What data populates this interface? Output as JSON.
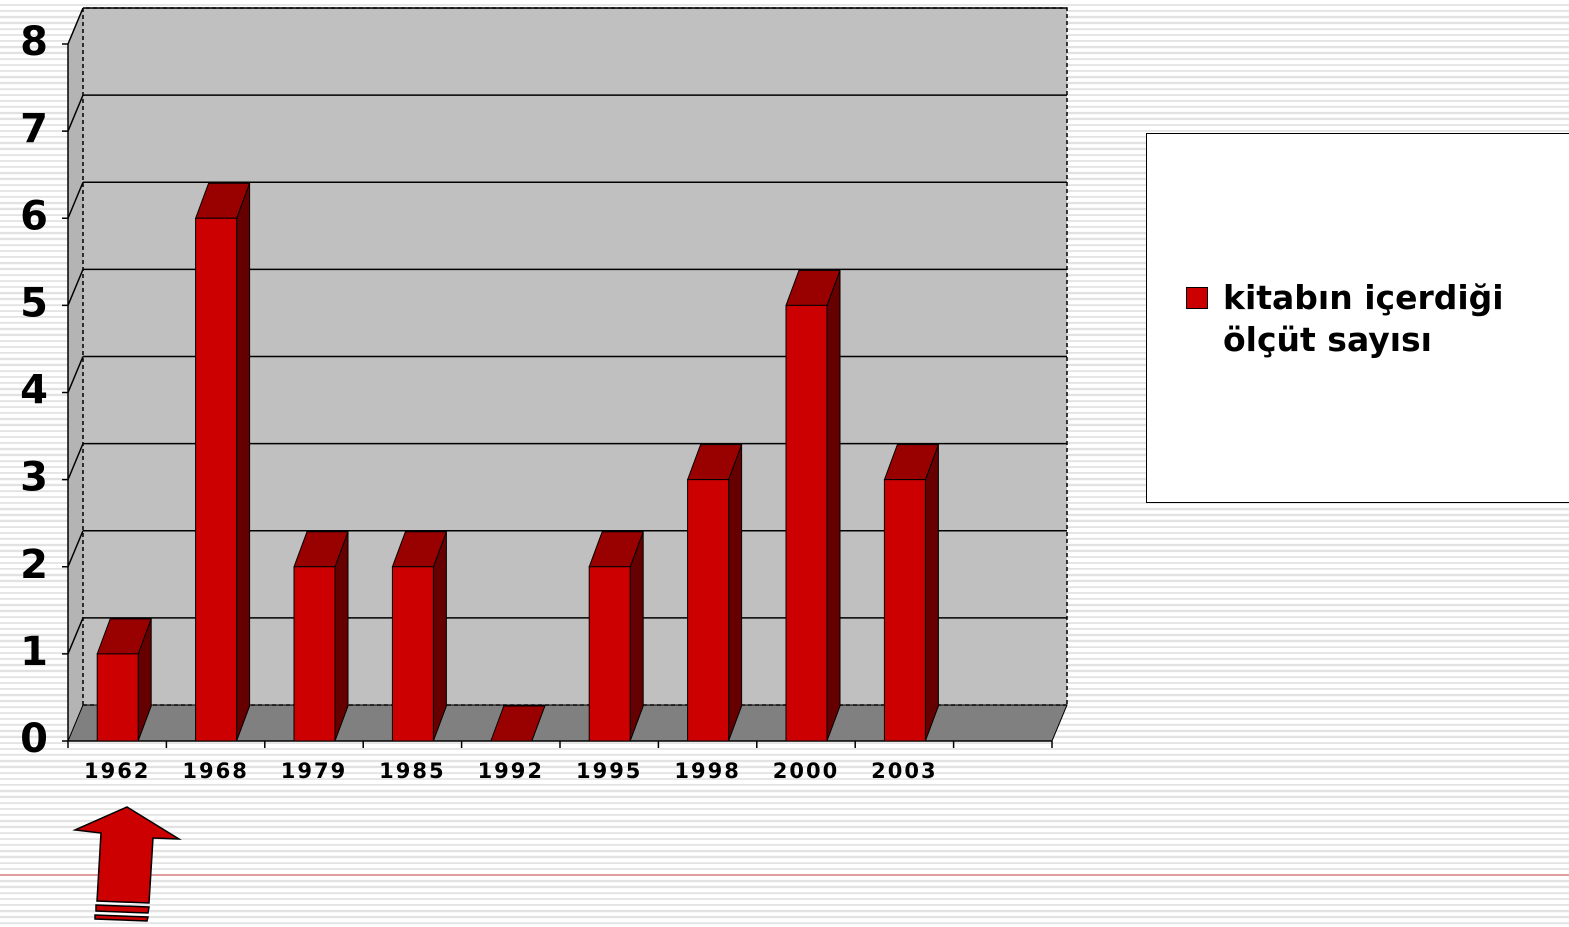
{
  "chart_data": {
    "type": "bar3d",
    "categories": [
      "1962",
      "1968",
      "1979",
      "1985",
      "1992",
      "1995",
      "1998",
      "2000",
      "2003",
      null
    ],
    "series": [
      {
        "name": "kitabın içerdiği ölçüt sayısı",
        "color": "#cc0000",
        "values": [
          1,
          6,
          2,
          2,
          0,
          2,
          3,
          5,
          3,
          null
        ]
      }
    ],
    "ylim": [
      0,
      8
    ],
    "yticks": [
      0,
      1,
      2,
      3,
      4,
      5,
      6,
      7,
      8
    ],
    "grid": true,
    "legend": "right"
  }
}
